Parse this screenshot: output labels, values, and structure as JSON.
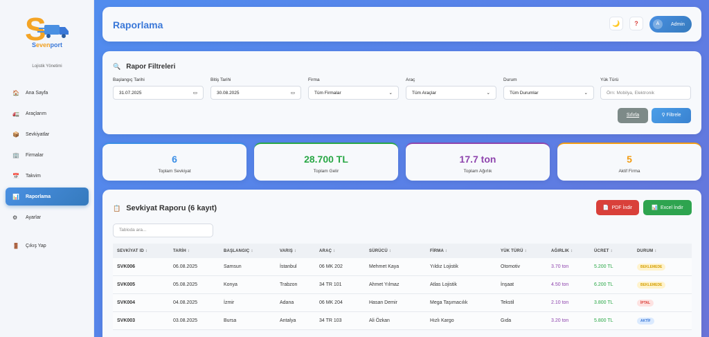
{
  "brand": {
    "name_prefix": "S",
    "name_part1": "even",
    "name_part2": "port",
    "tagline": "Lojistik Yönetimi"
  },
  "sidebar": {
    "items": [
      {
        "label": "Ana Sayfa",
        "icon": "home-icon",
        "glyph": "🏠"
      },
      {
        "label": "Araçlarım",
        "icon": "truck-icon",
        "glyph": "🚛"
      },
      {
        "label": "Sevkiyatlar",
        "icon": "box-icon",
        "glyph": "📦"
      },
      {
        "label": "Firmalar",
        "icon": "building-icon",
        "glyph": "🏢"
      },
      {
        "label": "Takvim",
        "icon": "calendar-icon",
        "glyph": "📅"
      },
      {
        "label": "Raporlama",
        "icon": "chart-icon",
        "glyph": "📊"
      },
      {
        "label": "Ayarlar",
        "icon": "gear-icon",
        "glyph": "⚙"
      }
    ],
    "logout": {
      "label": "Çıkış Yap",
      "icon": "door-icon",
      "glyph": "🚪"
    }
  },
  "header": {
    "title": "Raporlama",
    "theme_glyph": "🌙",
    "help_glyph": "?",
    "user_initial": "A",
    "user_name": "Admin"
  },
  "filters": {
    "title": "Rapor Filtreleri",
    "start_label": "Başlangıç Tarihi",
    "start_value": "31.07.2025",
    "end_label": "Bitiş Tarihi",
    "end_value": "30.08.2025",
    "company_label": "Firma",
    "company_value": "Tüm Firmalar",
    "vehicle_label": "Araç",
    "vehicle_value": "Tüm Araçlar",
    "status_label": "Durum",
    "status_value": "Tüm Durumlar",
    "load_label": "Yük Türü",
    "load_placeholder": "Örn: Mobilya, Elektronik",
    "reset_label": "Sıfırla",
    "filter_label": "Filtrele"
  },
  "stats": [
    {
      "value": "6",
      "label": "Toplam Sevkiyat",
      "color": "#3a8ee6"
    },
    {
      "value": "28.700 TL",
      "label": "Toplam Gelir",
      "color": "#28a745"
    },
    {
      "value": "17.7 ton",
      "label": "Toplam Ağırlık",
      "color": "#8e44ad"
    },
    {
      "value": "5",
      "label": "Aktif Firma",
      "color": "#f39c12"
    }
  ],
  "report": {
    "title": "Sevkiyat Raporu (6 kayıt)",
    "pdf_label": "PDF İndir",
    "excel_label": "Excel İndir",
    "search_placeholder": "Tabloda ara...",
    "columns": [
      "SEVKİYAT ID",
      "TARİH",
      "BAŞLANGIÇ",
      "VARIŞ",
      "ARAÇ",
      "SÜRÜCÜ",
      "FİRMA",
      "YÜK TÜRÜ",
      "AĞIRLIK",
      "ÜCRET",
      "DURUM"
    ],
    "rows": [
      {
        "id": "SVK006",
        "date": "06.08.2025",
        "from": "Samsun",
        "to": "İstanbul",
        "vehicle": "06 MK 202",
        "driver": "Mehmet Kaya",
        "company": "Yıldız Lojistik",
        "load": "Otomotiv",
        "weight": "3.70 ton",
        "price": "5.200 TL",
        "status": "BEKLEMEDE",
        "status_bg": "#fff3cd",
        "status_fg": "#d39e00"
      },
      {
        "id": "SVK005",
        "date": "05.08.2025",
        "from": "Konya",
        "to": "Trabzon",
        "vehicle": "34 TR 101",
        "driver": "Ahmet Yılmaz",
        "company": "Atlas Lojistik",
        "load": "İnşaat",
        "weight": "4.50 ton",
        "price": "6.200 TL",
        "status": "BEKLEMEDE",
        "status_bg": "#fff3cd",
        "status_fg": "#d39e00"
      },
      {
        "id": "SVK004",
        "date": "04.08.2025",
        "from": "İzmir",
        "to": "Adana",
        "vehicle": "06 MK 204",
        "driver": "Hasan Demir",
        "company": "Mega Taşımacılık",
        "load": "Tekstil",
        "weight": "2.10 ton",
        "price": "3.800 TL",
        "status": "İPTAL",
        "status_bg": "#fde2e1",
        "status_fg": "#d9403a"
      },
      {
        "id": "SVK003",
        "date": "03.08.2025",
        "from": "Bursa",
        "to": "Antalya",
        "vehicle": "34 TR 103",
        "driver": "Ali Özkan",
        "company": "Hızlı Kargo",
        "load": "Gıda",
        "weight": "3.20 ton",
        "price": "5.800 TL",
        "status": "AKTİF",
        "status_bg": "#dbeafe",
        "status_fg": "#3a78d8"
      }
    ]
  }
}
